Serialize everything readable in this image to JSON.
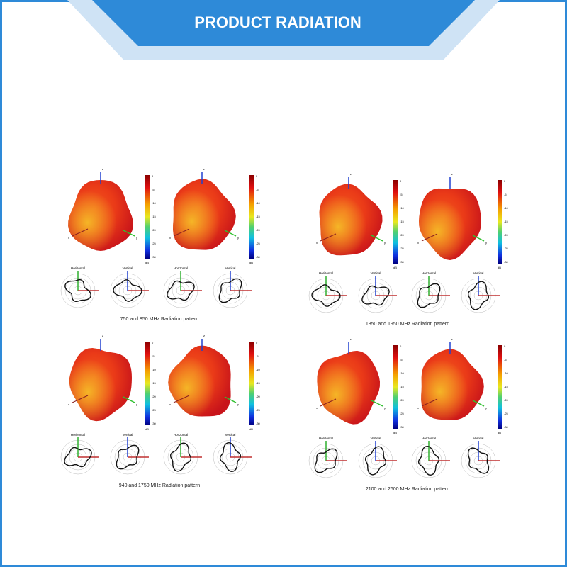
{
  "header": {
    "title": "PRODUCT RADIATION"
  },
  "panels": [
    {
      "caption": "750 and 850 MHz Radiation pattern"
    },
    {
      "caption": "1850 and 1950 MHz Radiation pattern"
    },
    {
      "caption": "940 and 1750 MHz Radiation pattern"
    },
    {
      "caption": "2100 and 2600 MHz Radiation pattern"
    }
  ],
  "polar_titles": [
    "Horizontal",
    "Vertical"
  ],
  "axis_labels": [
    "z",
    "x",
    "y"
  ],
  "colorbar": {
    "ticks": [
      "0",
      "-5",
      "-10",
      "-15",
      "-20",
      "-25",
      "-30"
    ],
    "unit": "dB"
  }
}
